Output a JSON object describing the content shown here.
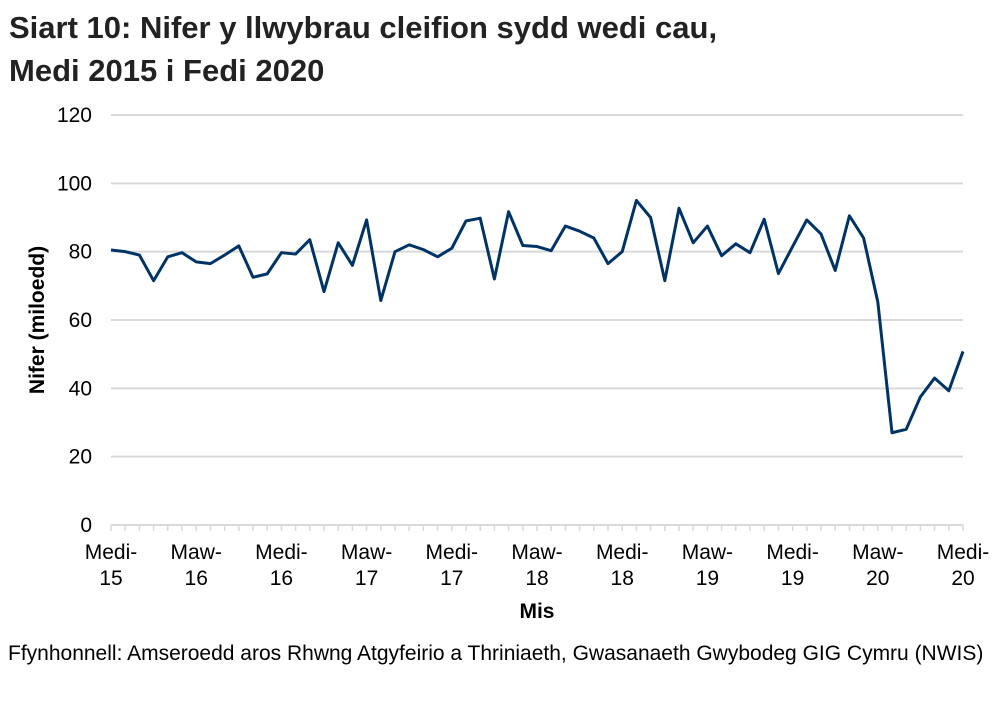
{
  "chart_data": {
    "type": "line",
    "title": "Siart 10: Nifer y llwybrau cleifion sydd wedi cau, Medi 2015 i Fedi 2020",
    "title_lines": [
      "Siart 10: Nifer y llwybrau cleifion sydd wedi cau,",
      "Medi 2015 i Fedi 2020"
    ],
    "xlabel": "Mis",
    "ylabel": "Nifer (miloedd)",
    "ylim": [
      0,
      120
    ],
    "yticks": [
      0,
      20,
      40,
      60,
      80,
      100,
      120
    ],
    "x_tick_labels": [
      [
        "Medi-",
        "15"
      ],
      [
        "Maw-",
        "16"
      ],
      [
        "Medi-",
        "16"
      ],
      [
        "Maw-",
        "17"
      ],
      [
        "Medi-",
        "17"
      ],
      [
        "Maw-",
        "18"
      ],
      [
        "Medi-",
        "18"
      ],
      [
        "Maw-",
        "19"
      ],
      [
        "Medi-",
        "19"
      ],
      [
        "Maw-",
        "20"
      ],
      [
        "Medi-",
        "20"
      ]
    ],
    "x_start": "Medi 2015",
    "x_end": "Medi 2020",
    "grid": true,
    "line_color": "#003366",
    "values": [
      80.5,
      80,
      79,
      71.5,
      78.5,
      79.7,
      77,
      76.5,
      79,
      81.7,
      72.5,
      73.5,
      79.7,
      79.3,
      83.5,
      68.3,
      82.6,
      76,
      89.3,
      65.7,
      80,
      82,
      80.6,
      78.5,
      81,
      89,
      89.8,
      72,
      91.7,
      81.8,
      81.5,
      80.3,
      87.5,
      86,
      84,
      76.5,
      80,
      95,
      90,
      71.5,
      92.7,
      82.6,
      87.5,
      78.8,
      82.3,
      79.7,
      89.5,
      73.6,
      81.5,
      89.3,
      85.2,
      74.5,
      90.5,
      84,
      65.3,
      27,
      28,
      37.5,
      43,
      39.3,
      50.8
    ]
  },
  "source": "Ffynhonnell: Amseroedd aros Rhwng Atgyfeirio a Thriniaeth, Gwasanaeth Gwybodeg GIG Cymru (NWIS)"
}
